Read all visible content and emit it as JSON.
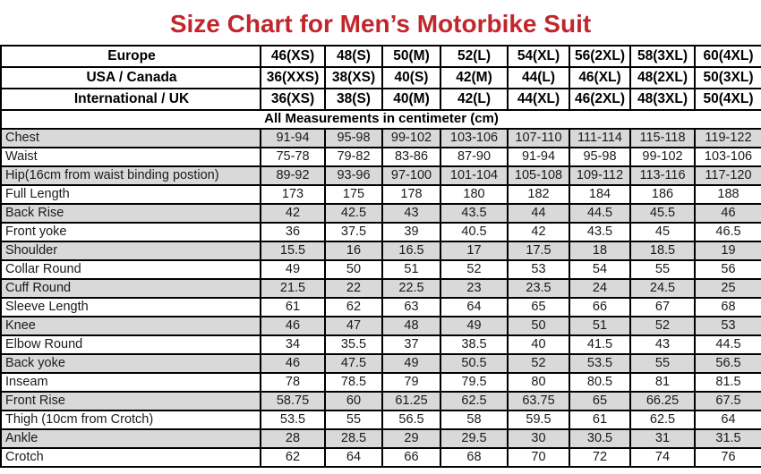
{
  "title": "Size Chart for Men’s Motorbike Suit",
  "colors": {
    "title_red": "#C1262D",
    "row_alt_gray": "#D9D9D9",
    "border_black": "#000000"
  },
  "chart_data": {
    "type": "table",
    "title": "Size Chart for Men’s Motorbike Suit",
    "units_note": "All Measurements in centimeter (cm)",
    "size_headers": [
      {
        "label": "Europe",
        "sizes": [
          "46(XS)",
          "48(S)",
          "50(M)",
          "52(L)",
          "54(XL)",
          "56(2XL)",
          "58(3XL)",
          "60(4XL)"
        ]
      },
      {
        "label": "USA / Canada",
        "sizes": [
          "36(XXS)",
          "38(XS)",
          "40(S)",
          "42(M)",
          "44(L)",
          "46(XL)",
          "48(2XL)",
          "50(3XL)"
        ]
      },
      {
        "label": "International / UK",
        "sizes": [
          "36(XS)",
          "38(S)",
          "40(M)",
          "42(L)",
          "44(XL)",
          "46(2XL)",
          "48(3XL)",
          "50(4XL)"
        ]
      }
    ],
    "measurements": [
      {
        "label": "Chest",
        "values": [
          "91-94",
          "95-98",
          "99-102",
          "103-106",
          "107-110",
          "111-114",
          "115-118",
          "119-122"
        ]
      },
      {
        "label": "Waist",
        "values": [
          "75-78",
          "79-82",
          "83-86",
          "87-90",
          "91-94",
          "95-98",
          "99-102",
          "103-106"
        ]
      },
      {
        "label": "Hip(16cm from waist binding postion)",
        "values": [
          "89-92",
          "93-96",
          "97-100",
          "101-104",
          "105-108",
          "109-112",
          "113-116",
          "117-120"
        ]
      },
      {
        "label": "Full Length",
        "values": [
          "173",
          "175",
          "178",
          "180",
          "182",
          "184",
          "186",
          "188"
        ]
      },
      {
        "label": "Back Rise",
        "values": [
          "42",
          "42.5",
          "43",
          "43.5",
          "44",
          "44.5",
          "45.5",
          "46"
        ]
      },
      {
        "label": "Front yoke",
        "values": [
          "36",
          "37.5",
          "39",
          "40.5",
          "42",
          "43.5",
          "45",
          "46.5"
        ]
      },
      {
        "label": "Shoulder",
        "values": [
          "15.5",
          "16",
          "16.5",
          "17",
          "17.5",
          "18",
          "18.5",
          "19"
        ]
      },
      {
        "label": "Collar Round",
        "values": [
          "49",
          "50",
          "51",
          "52",
          "53",
          "54",
          "55",
          "56"
        ]
      },
      {
        "label": "Cuff Round",
        "values": [
          "21.5",
          "22",
          "22.5",
          "23",
          "23.5",
          "24",
          "24.5",
          "25"
        ]
      },
      {
        "label": "Sleeve Length",
        "values": [
          "61",
          "62",
          "63",
          "64",
          "65",
          "66",
          "67",
          "68"
        ]
      },
      {
        "label": "Knee",
        "values": [
          "46",
          "47",
          "48",
          "49",
          "50",
          "51",
          "52",
          "53"
        ]
      },
      {
        "label": "Elbow Round",
        "values": [
          "34",
          "35.5",
          "37",
          "38.5",
          "40",
          "41.5",
          "43",
          "44.5"
        ]
      },
      {
        "label": "Back yoke",
        "values": [
          "46",
          "47.5",
          "49",
          "50.5",
          "52",
          "53.5",
          "55",
          "56.5"
        ]
      },
      {
        "label": "Inseam",
        "values": [
          "78",
          "78.5",
          "79",
          "79.5",
          "80",
          "80.5",
          "81",
          "81.5"
        ]
      },
      {
        "label": "Front Rise",
        "values": [
          "58.75",
          "60",
          "61.25",
          "62.5",
          "63.75",
          "65",
          "66.25",
          "67.5"
        ]
      },
      {
        "label": "Thigh (10cm from Crotch)",
        "values": [
          "53.5",
          "55",
          "56.5",
          "58",
          "59.5",
          "61",
          "62.5",
          "64"
        ]
      },
      {
        "label": "Ankle",
        "values": [
          "28",
          "28.5",
          "29",
          "29.5",
          "30",
          "30.5",
          "31",
          "31.5"
        ]
      },
      {
        "label": "Crotch",
        "values": [
          "62",
          "64",
          "66",
          "68",
          "70",
          "72",
          "74",
          "76"
        ]
      }
    ]
  }
}
